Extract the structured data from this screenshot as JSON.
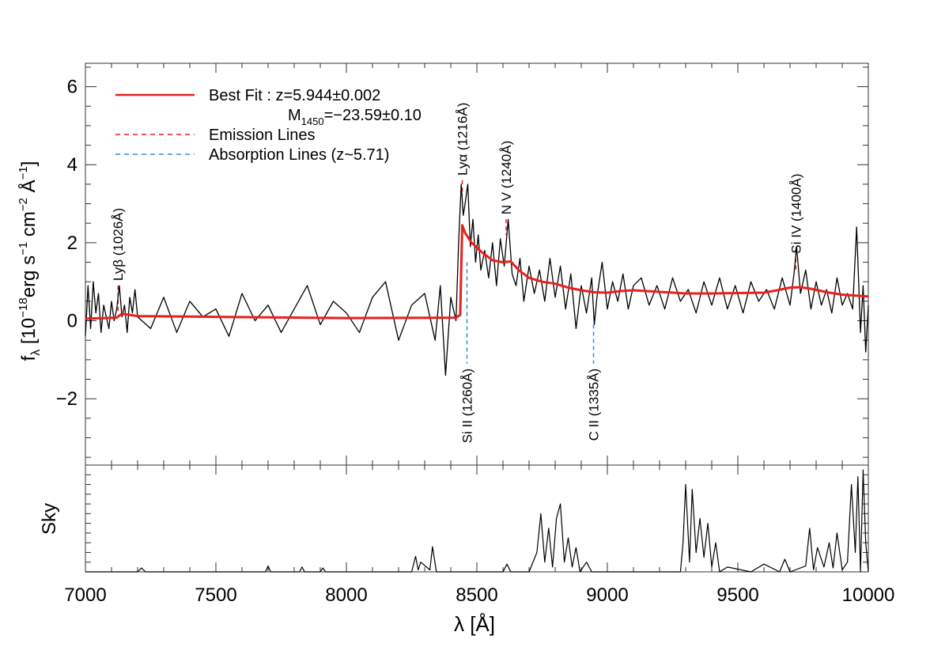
{
  "chart_data": {
    "type": "line",
    "x_range": [
      7000,
      10000
    ],
    "x_ticks": [
      7000,
      7500,
      8000,
      8500,
      9000,
      9500,
      10000
    ],
    "x_tick_labels": [
      "7000",
      "7500",
      "8000",
      "8500",
      "9000",
      "9500",
      "10000"
    ],
    "xlabel": "λ [Å]",
    "top_panel": {
      "ylabel": {
        "f": "f",
        "lambda_sub": "λ",
        "open": " [10",
        "exp1": "−18",
        "erg": "erg s",
        "exp2": "−1",
        "cm": " cm",
        "exp3": "−2",
        "ang": " Å",
        "exp4": "−1",
        "close": "]"
      },
      "y_range": [
        -3.7,
        6.6
      ],
      "y_ticks": [
        -2,
        0,
        2,
        4,
        6
      ],
      "y_tick_labels": [
        "−2",
        "0",
        "2",
        "4",
        "6"
      ],
      "legend": {
        "best_fit_label": "Best Fit : z=5.944±0.002",
        "magnitude_prefix": "M",
        "magnitude_sub": "1450",
        "magnitude_value": "=−23.59±0.10",
        "emission_label": "Emission Lines",
        "absorption_label": "Absorption Lines (z~5.71)"
      },
      "colors": {
        "spectrum": "#000000",
        "best_fit": "#e8201e",
        "emission": "#e8201e",
        "absorption": "#2a8ee0"
      },
      "emission_lines": [
        {
          "label": "Lyβ (1026Å)",
          "x": 7125,
          "y_from": 0.9,
          "y_to": 0.2
        },
        {
          "label": "Lyα (1216Å)",
          "x": 8444,
          "y_from": 3.6,
          "y_to": 3.2
        },
        {
          "label": "N V (1240Å)",
          "x": 8612,
          "y_from": 2.6,
          "y_to": 2.2
        },
        {
          "label": "Si IV (1400Å)",
          "x": 9722,
          "y_from": 1.6,
          "y_to": 1.3
        }
      ],
      "absorption_lines": [
        {
          "label": "Si II (1260Å)",
          "x": 8462,
          "y_from": 1.5,
          "y_to": -1.1
        },
        {
          "label": "C II (1335Å)",
          "x": 8947,
          "y_from": -0.1,
          "y_to": -1.1
        }
      ],
      "best_fit_x": [
        7000,
        7120,
        7140,
        7200,
        7500,
        8000,
        8420,
        8436,
        8444,
        8455,
        8480,
        8520,
        8560,
        8600,
        8630,
        8660,
        8700,
        8750,
        8800,
        8850,
        8900,
        8950,
        9000,
        9050,
        9100,
        9200,
        9300,
        9400,
        9500,
        9600,
        9650,
        9700,
        9740,
        9780,
        9850,
        9900,
        10000
      ],
      "best_fit_y": [
        0.05,
        0.08,
        0.18,
        0.12,
        0.1,
        0.07,
        0.08,
        0.15,
        2.45,
        2.25,
        2.0,
        1.75,
        1.55,
        1.5,
        1.52,
        1.3,
        1.1,
        1.0,
        0.95,
        0.85,
        0.78,
        0.73,
        0.72,
        0.76,
        0.78,
        0.74,
        0.7,
        0.7,
        0.71,
        0.72,
        0.78,
        0.85,
        0.86,
        0.82,
        0.72,
        0.67,
        0.62
      ],
      "spectrum_x": [
        7000,
        7010,
        7020,
        7030,
        7040,
        7050,
        7060,
        7070,
        7080,
        7090,
        7100,
        7110,
        7120,
        7130,
        7140,
        7150,
        7160,
        7170,
        7180,
        7190,
        7200,
        7250,
        7300,
        7350,
        7400,
        7450,
        7500,
        7550,
        7600,
        7650,
        7700,
        7750,
        7800,
        7850,
        7900,
        7950,
        8000,
        8050,
        8100,
        8150,
        8200,
        8250,
        8300,
        8340,
        8360,
        8380,
        8400,
        8420,
        8430,
        8440,
        8448,
        8455,
        8465,
        8475,
        8485,
        8495,
        8505,
        8515,
        8530,
        8545,
        8560,
        8575,
        8590,
        8605,
        8620,
        8635,
        8650,
        8665,
        8680,
        8700,
        8720,
        8740,
        8760,
        8780,
        8800,
        8820,
        8840,
        8860,
        8880,
        8900,
        8920,
        8940,
        8950,
        8960,
        8980,
        9000,
        9020,
        9040,
        9060,
        9080,
        9100,
        9130,
        9160,
        9190,
        9220,
        9250,
        9280,
        9310,
        9340,
        9370,
        9400,
        9430,
        9460,
        9490,
        9520,
        9550,
        9580,
        9610,
        9640,
        9670,
        9700,
        9715,
        9725,
        9740,
        9760,
        9780,
        9800,
        9820,
        9840,
        9860,
        9880,
        9900,
        9920,
        9940,
        9955,
        9970,
        9980,
        9990,
        10000
      ],
      "spectrum_y": [
        -0.4,
        0.9,
        -0.2,
        1.0,
        0.2,
        0.7,
        -0.3,
        0.4,
        0.1,
        -0.2,
        0.5,
        0.0,
        0.3,
        0.9,
        0.1,
        0.4,
        -0.3,
        0.6,
        0.2,
        0.8,
        0.1,
        -0.2,
        0.6,
        -0.3,
        0.5,
        0.1,
        0.3,
        -0.4,
        0.7,
        0.0,
        0.4,
        -0.3,
        0.3,
        0.9,
        -0.1,
        0.5,
        0.2,
        -0.3,
        0.6,
        1.0,
        -0.5,
        0.4,
        0.7,
        -0.5,
        0.9,
        -1.4,
        0.6,
        0.0,
        2.0,
        3.5,
        2.7,
        3.0,
        3.5,
        1.9,
        2.6,
        1.5,
        2.2,
        1.3,
        1.8,
        1.1,
        2.0,
        0.9,
        2.1,
        1.4,
        2.6,
        1.2,
        0.9,
        1.6,
        0.5,
        1.4,
        0.7,
        1.3,
        0.5,
        1.6,
        0.6,
        1.4,
        0.3,
        1.2,
        -0.2,
        0.9,
        0.2,
        1.1,
        -0.1,
        0.6,
        1.5,
        0.3,
        1.0,
        0.5,
        1.2,
        0.3,
        0.9,
        1.1,
        0.4,
        0.9,
        0.3,
        1.1,
        0.5,
        0.8,
        0.2,
        1.0,
        0.4,
        1.1,
        0.3,
        0.9,
        0.2,
        1.0,
        0.5,
        0.8,
        0.3,
        1.1,
        0.4,
        1.2,
        1.9,
        0.7,
        1.3,
        0.3,
        1.0,
        0.4,
        0.8,
        0.2,
        1.1,
        0.4,
        0.7,
        0.3,
        2.4,
        -0.3,
        0.9,
        -0.8,
        0.4,
        -0.5,
        0.6
      ]
    },
    "sky_panel": {
      "ylabel": "Sky",
      "y_range": [
        0,
        1.1
      ],
      "x": [
        7000,
        7200,
        7215,
        7230,
        7500,
        7690,
        7700,
        7710,
        7820,
        7830,
        7840,
        7900,
        7910,
        7920,
        8250,
        8265,
        8275,
        8285,
        8320,
        8330,
        8345,
        8400,
        8600,
        8615,
        8630,
        8700,
        8730,
        8745,
        8760,
        8775,
        8790,
        8805,
        8820,
        8835,
        8850,
        8865,
        8880,
        8895,
        8920,
        8940,
        9000,
        9280,
        9290,
        9300,
        9315,
        9325,
        9340,
        9355,
        9370,
        9385,
        9400,
        9415,
        9430,
        9460,
        9550,
        9600,
        9660,
        9680,
        9700,
        9760,
        9775,
        9790,
        9805,
        9830,
        9850,
        9865,
        9880,
        9900,
        9920,
        9935,
        9950,
        9960,
        9970,
        9980,
        9990,
        10000
      ],
      "y": [
        0.0,
        0.0,
        0.04,
        0.0,
        0.0,
        0.0,
        0.06,
        0.0,
        0.0,
        0.05,
        0.0,
        0.0,
        0.04,
        0.0,
        0.0,
        0.16,
        0.02,
        0.1,
        0.02,
        0.26,
        0.0,
        0.0,
        0.0,
        0.08,
        0.0,
        0.0,
        0.2,
        0.6,
        0.1,
        0.45,
        0.05,
        0.55,
        0.7,
        0.1,
        0.35,
        0.05,
        0.25,
        0.0,
        0.1,
        0.0,
        0.0,
        0.0,
        0.3,
        0.9,
        0.1,
        0.85,
        0.2,
        0.55,
        0.15,
        0.5,
        0.05,
        0.3,
        0.0,
        0.05,
        0.0,
        0.08,
        0.0,
        0.13,
        0.0,
        0.06,
        0.45,
        0.02,
        0.25,
        0.05,
        0.3,
        0.04,
        0.4,
        0.02,
        0.1,
        0.9,
        0.2,
        0.98,
        0.0,
        1.05,
        0.3,
        0.0
      ]
    }
  }
}
